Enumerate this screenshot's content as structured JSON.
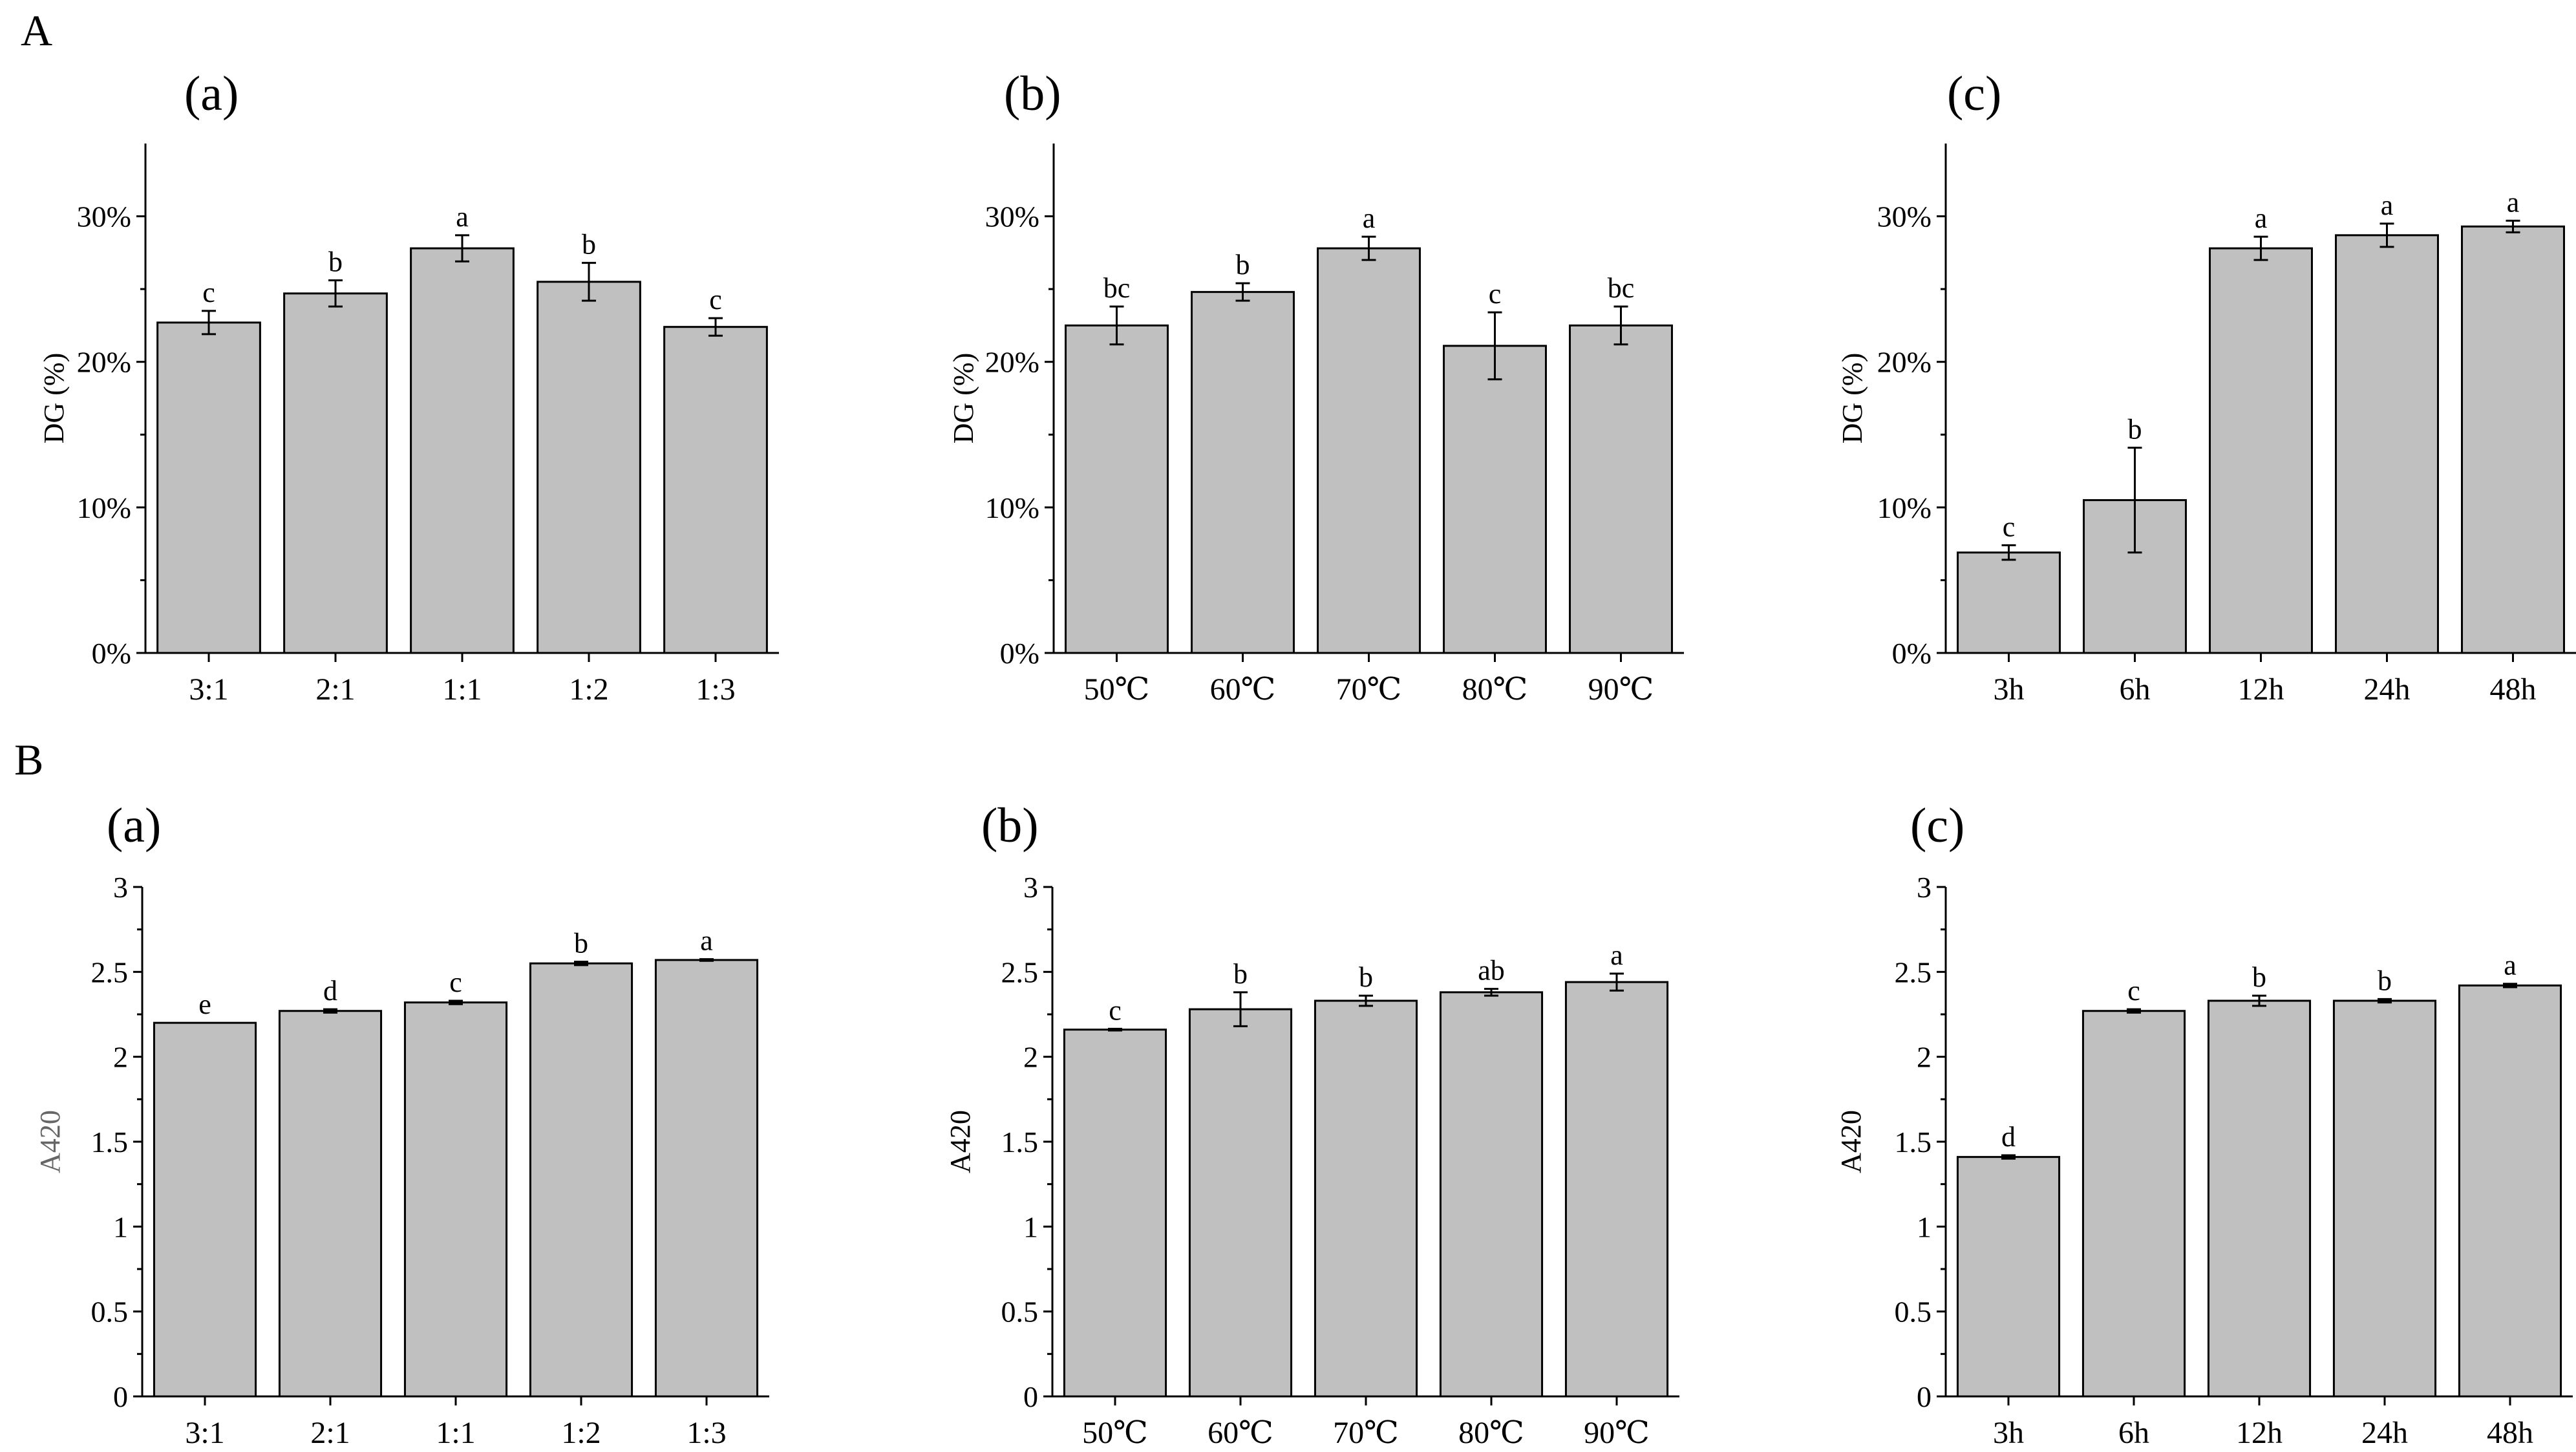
{
  "figure": {
    "colors": {
      "bar": "#c0c0c0",
      "axis": "#000000",
      "text": "#000000",
      "ylabel_muted": "#666666"
    },
    "rows": [
      {
        "label": "A",
        "panels": [
          {
            "label": "(a)",
            "ylabel": "DG (%)"
          },
          {
            "label": "(b)",
            "ylabel": "DG (%)"
          },
          {
            "label": "(c)",
            "ylabel": "DG (%)"
          }
        ]
      },
      {
        "label": "B",
        "panels": [
          {
            "label": "(a)",
            "ylabel": "A420"
          },
          {
            "label": "(b)",
            "ylabel": "A420"
          },
          {
            "label": "(c)",
            "ylabel": "A420"
          }
        ]
      }
    ]
  },
  "chart_data": [
    {
      "type": "bar",
      "row": "A",
      "panel": "(a)",
      "title": "(a)",
      "xlabel": "",
      "ylabel": "DG (%)",
      "ylim": [
        0,
        35
      ],
      "yticks": [
        0,
        10,
        20,
        30
      ],
      "ytick_labels": [
        "0%",
        "10%",
        "20%",
        "30%"
      ],
      "categories": [
        "3:1",
        "2:1",
        "1:1",
        "1:2",
        "1:3"
      ],
      "values": [
        22.7,
        24.7,
        27.8,
        25.5,
        22.4
      ],
      "errors": [
        0.8,
        0.9,
        0.9,
        1.3,
        0.6
      ],
      "significance": [
        "c",
        "b",
        "a",
        "b",
        "c"
      ]
    },
    {
      "type": "bar",
      "row": "A",
      "panel": "(b)",
      "title": "(b)",
      "xlabel": "",
      "ylabel": "DG (%)",
      "ylim": [
        0,
        35
      ],
      "yticks": [
        0,
        10,
        20,
        30
      ],
      "ytick_labels": [
        "0%",
        "10%",
        "20%",
        "30%"
      ],
      "categories": [
        "50℃",
        "60℃",
        "70℃",
        "80℃",
        "90℃"
      ],
      "values": [
        22.5,
        24.8,
        27.8,
        21.1,
        22.5
      ],
      "errors": [
        1.3,
        0.6,
        0.8,
        2.3,
        1.3
      ],
      "significance": [
        "bc",
        "b",
        "a",
        "c",
        "bc"
      ]
    },
    {
      "type": "bar",
      "row": "A",
      "panel": "(c)",
      "title": "(c)",
      "xlabel": "",
      "ylabel": "DG (%)",
      "ylim": [
        0,
        35
      ],
      "yticks": [
        0,
        10,
        20,
        30
      ],
      "ytick_labels": [
        "0%",
        "10%",
        "20%",
        "30%"
      ],
      "categories": [
        "3h",
        "6h",
        "12h",
        "24h",
        "48h"
      ],
      "values": [
        6.9,
        10.5,
        27.8,
        28.7,
        29.3
      ],
      "errors": [
        0.5,
        3.6,
        0.8,
        0.8,
        0.4
      ],
      "significance": [
        "c",
        "b",
        "a",
        "a",
        "a"
      ]
    },
    {
      "type": "bar",
      "row": "B",
      "panel": "(a)",
      "title": "(a)",
      "xlabel": "",
      "ylabel": "A420",
      "ylim": [
        0,
        3
      ],
      "yticks": [
        0,
        0.5,
        1,
        1.5,
        2,
        2.5,
        3
      ],
      "ytick_labels": [
        "0",
        "0.5",
        "1",
        "1.5",
        "2",
        "2.5",
        "3"
      ],
      "categories": [
        "3:1",
        "2:1",
        "1:1",
        "1:2",
        "1:3"
      ],
      "values": [
        2.2,
        2.27,
        2.32,
        2.55,
        2.57
      ],
      "errors": [
        0.0,
        0.01,
        0.01,
        0.01,
        0.005
      ],
      "significance": [
        "e",
        "d",
        "c",
        "b",
        "a"
      ]
    },
    {
      "type": "bar",
      "row": "B",
      "panel": "(b)",
      "title": "(b)",
      "xlabel": "",
      "ylabel": "A420",
      "ylim": [
        0,
        3
      ],
      "yticks": [
        0,
        0.5,
        1,
        1.5,
        2,
        2.5,
        3
      ],
      "ytick_labels": [
        "0",
        "0.5",
        "1",
        "1.5",
        "2",
        "2.5",
        "3"
      ],
      "categories": [
        "50℃",
        "60℃",
        "70℃",
        "80℃",
        "90℃"
      ],
      "values": [
        2.16,
        2.28,
        2.33,
        2.38,
        2.44
      ],
      "errors": [
        0.005,
        0.1,
        0.03,
        0.02,
        0.05
      ],
      "significance": [
        "c",
        "b",
        "b",
        "ab",
        "a"
      ]
    },
    {
      "type": "bar",
      "row": "B",
      "panel": "(c)",
      "title": "(c)",
      "xlabel": "",
      "ylabel": "A420",
      "ylim": [
        0,
        3
      ],
      "yticks": [
        0,
        0.5,
        1,
        1.5,
        2,
        2.5,
        3
      ],
      "ytick_labels": [
        "0",
        "0.5",
        "1",
        "1.5",
        "2",
        "2.5",
        "3"
      ],
      "categories": [
        "3h",
        "6h",
        "12h",
        "24h",
        "48h"
      ],
      "values": [
        1.41,
        2.27,
        2.33,
        2.33,
        2.42
      ],
      "errors": [
        0.01,
        0.01,
        0.03,
        0.01,
        0.01
      ],
      "significance": [
        "d",
        "c",
        "b",
        "b",
        "a"
      ]
    }
  ]
}
